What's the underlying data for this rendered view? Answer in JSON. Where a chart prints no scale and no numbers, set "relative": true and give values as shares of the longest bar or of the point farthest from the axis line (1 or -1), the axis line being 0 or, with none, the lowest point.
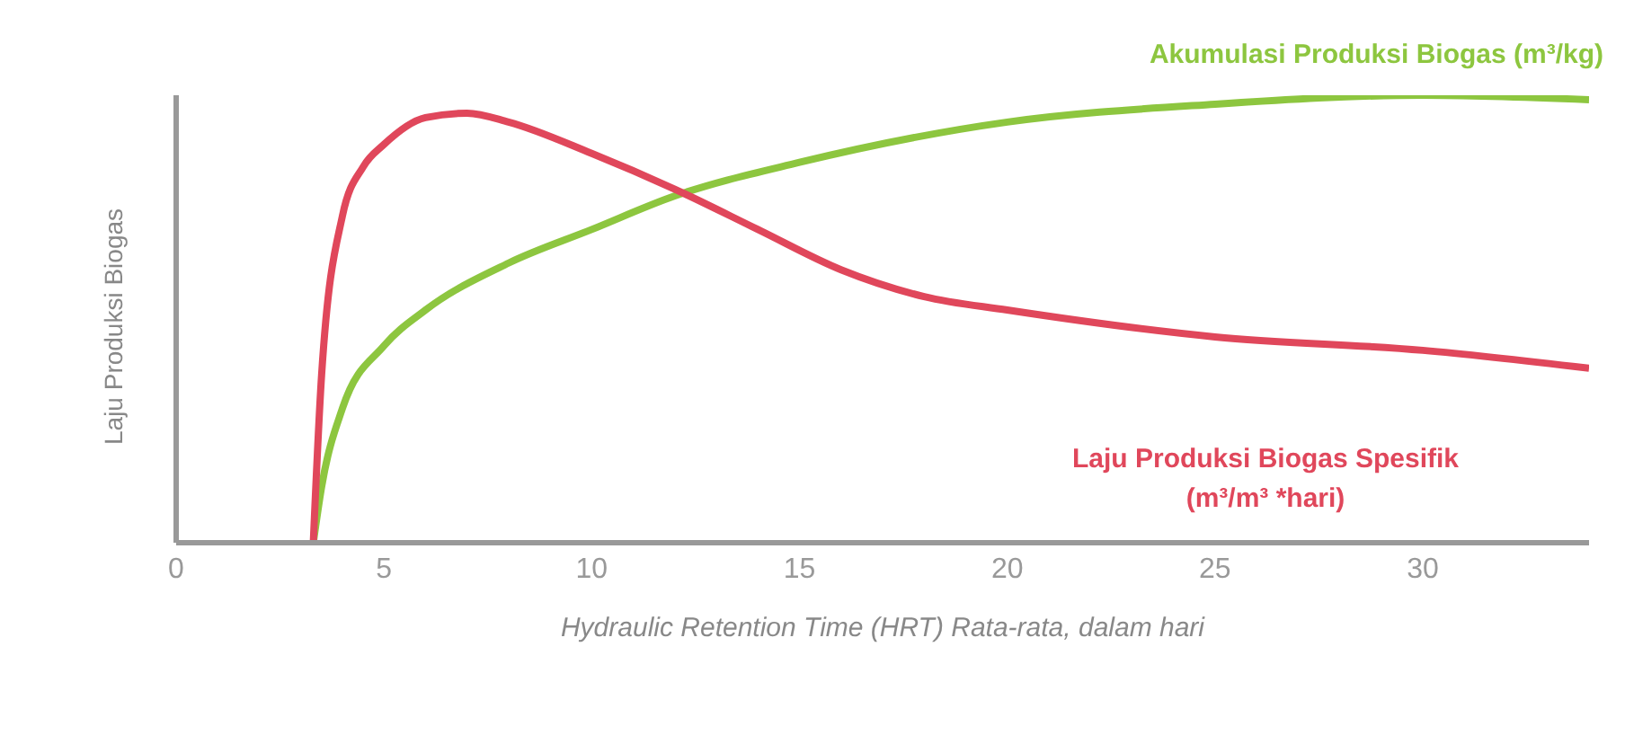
{
  "chart_data": {
    "type": "line",
    "relative": true,
    "xlabel": "Hydraulic Retention Time (HRT) Rata-rata, dalam hari",
    "ylabel": "Laju Produksi Biogas",
    "xlim": [
      0,
      34
    ],
    "xticks": [
      0,
      5,
      10,
      15,
      20,
      25,
      30
    ],
    "grid": false,
    "legend": false,
    "series": [
      {
        "name": "Akumulasi Produksi Biogas (m³/kg)",
        "color": "#8dc63f",
        "x": [
          3.3,
          3.5,
          4,
          5,
          6,
          8,
          10,
          12,
          15,
          20,
          25,
          30,
          34
        ],
        "values": [
          0,
          0.125,
          0.3,
          0.44,
          0.52,
          0.625,
          0.7,
          0.775,
          0.85,
          0.94,
          0.98,
          1,
          0.99
        ]
      },
      {
        "name": "Laju Produksi Biogas Spesifik (m³/m³ *hari)",
        "color": "#e0475b",
        "x": [
          3.3,
          3.5,
          4,
          4.5,
          5,
          6,
          7,
          8,
          10,
          12,
          14,
          16,
          18,
          20,
          25,
          30,
          34
        ],
        "values": [
          0,
          0.375,
          0.73,
          0.84,
          0.89,
          0.95,
          0.96,
          0.94,
          0.87,
          0.79,
          0.7,
          0.61,
          0.55,
          0.52,
          0.46,
          0.43,
          0.39
        ]
      }
    ]
  }
}
